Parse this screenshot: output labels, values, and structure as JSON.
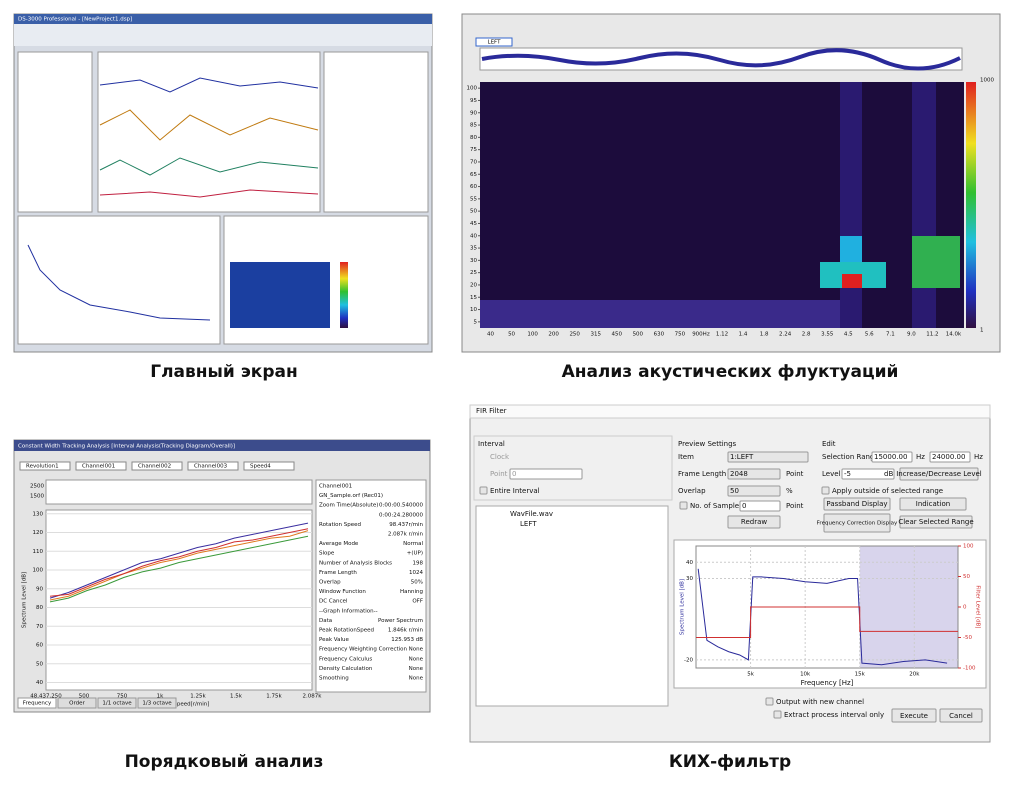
{
  "captions": [
    "Главный экран",
    "Анализ акустических флуктуаций",
    "Порядковый анализ",
    "КИХ-фильтр"
  ],
  "main_screen": {
    "title": "DS-3000 Professional - [NewProject1.dsp]"
  },
  "acoustic": {
    "xticks": [
      "40",
      "50",
      "100",
      "200",
      "250",
      "315",
      "450",
      "500",
      "630",
      "750",
      "900Hz",
      "1.12",
      "1.4",
      "1.8",
      "2.24",
      "2.8",
      "3.55",
      "4.5",
      "5.6",
      "7.1",
      "9.0",
      "11.2",
      "14.0k"
    ],
    "yticks": [
      100,
      95,
      90,
      85,
      80,
      75,
      70,
      65,
      60,
      55,
      50,
      45,
      40,
      35,
      30,
      25,
      20,
      15,
      10,
      5
    ],
    "colorbar": [
      1000,
      1
    ],
    "tab": "LEFT"
  },
  "order_analysis": {
    "title": "Constant Width Tracking Analysis [Interval Analysis(Tracking Diagram/Overall)]",
    "legend": [
      "Revolution1",
      "Channel001",
      "Channel002",
      "Channel003",
      "Speed4"
    ],
    "strip_yticks": [
      2500,
      1500
    ],
    "ylabel": "Spectrum Level [dB]",
    "xlabel": "Rotation Speed[r/min]",
    "ylim": [
      36,
      132
    ],
    "yticks": [
      130,
      120,
      110,
      100,
      90,
      80,
      70,
      60,
      50,
      40
    ],
    "xticks": [
      "48.437,250",
      "500",
      "750",
      "1k",
      "1.25k",
      "1.5k",
      "1.75k",
      "2.087k"
    ],
    "series": [
      {
        "name": "Channel001",
        "color": "#3a2ea0",
        "values": [
          85,
          88,
          92,
          96,
          100,
          104,
          106,
          109,
          112,
          114,
          117,
          119,
          121,
          123,
          125
        ]
      },
      {
        "name": "Channel002",
        "color": "#e07a20",
        "values": [
          84,
          86,
          90,
          94,
          98,
          101,
          104,
          106,
          109,
          111,
          113,
          115,
          117,
          118,
          121
        ]
      },
      {
        "name": "Channel003",
        "color": "#3a9a3a",
        "values": [
          83,
          85,
          89,
          92,
          96,
          99,
          101,
          104,
          106,
          108,
          110,
          112,
          114,
          116,
          118
        ]
      },
      {
        "name": "Revolution1",
        "color": "#d03030",
        "values": [
          86,
          87,
          91,
          95,
          98,
          102,
          105,
          107,
          110,
          112,
          115,
          116,
          118,
          120,
          122
        ]
      }
    ],
    "info": [
      [
        "Channel001",
        ""
      ],
      [
        "GN_Sample.orf (Rec01)",
        ""
      ],
      [
        "Zoom Time(Absolute)",
        "0:00:00.540000"
      ],
      [
        "",
        "0:00:24.280000"
      ],
      [
        "Rotation Speed",
        "98.437r/min"
      ],
      [
        "",
        "2.087k r/min"
      ],
      [
        "Average Mode",
        "Normal"
      ],
      [
        "Slope",
        "+(UP)"
      ],
      [
        "Number of Analysis Blocks",
        "198"
      ],
      [
        "Frame Length",
        "1024"
      ],
      [
        "Overlap",
        "50%"
      ],
      [
        "Window Function",
        "Hanning"
      ],
      [
        "DC Cancel",
        "OFF"
      ],
      [
        "--Graph Information--",
        ""
      ],
      [
        "Data",
        "Power Spectrum"
      ],
      [
        "Peak RotationSpeed",
        "1.846k r/min"
      ],
      [
        "Peak Value",
        "125.953 dB"
      ],
      [
        "Frequency Weighting Correction",
        "None"
      ],
      [
        "Frequency Calculus",
        "None"
      ],
      [
        "Density Calculation",
        "None"
      ],
      [
        "Smoothing",
        "None"
      ]
    ],
    "tabs": [
      "Frequency",
      "Order",
      "1/1 octave",
      "1/3 octave"
    ]
  },
  "fir": {
    "title": "FIR Filter",
    "interval": {
      "heading": "Interval",
      "clock": "Clock",
      "point": "Point",
      "point_value": "0",
      "entire": "Entire Interval"
    },
    "tree": [
      "WavFile.wav",
      "LEFT"
    ],
    "preview": {
      "heading": "Preview Settings",
      "item": "Item",
      "item_value": "1:LEFT",
      "frame": "Frame Length",
      "frame_value": "2048",
      "unit_point": "Point",
      "overlap": "Overlap",
      "overlap_value": "50",
      "percent": "%",
      "samples": "No. of Samples",
      "samples_value": "0",
      "redraw": "Redraw"
    },
    "edit": {
      "heading": "Edit",
      "range": "Selection Range",
      "from": "15000.00",
      "hz": "Hz",
      "to": "24000.00",
      "level": "Level",
      "level_value": "-5",
      "db": "dB",
      "incdec": "Increase/Decrease Level",
      "apply": "Apply outside of selected range",
      "passband": "Passband Display",
      "indication": "Indication",
      "correction": "Frequency Correction Display",
      "clear": "Clear Selected Range"
    },
    "chart": {
      "ylabel": "Spectrum Level [dB]",
      "y2label": "Filter Level [dB]",
      "xlabel": "Frequency [Hz]",
      "xlim": [
        0,
        24000
      ],
      "xticks": [
        {
          "value": 5000,
          "label": "5k"
        },
        {
          "value": 10000,
          "label": "10k"
        },
        {
          "value": 15000,
          "label": "15k"
        },
        {
          "value": 20000,
          "label": "20k"
        }
      ],
      "ylim": [
        -25,
        50
      ],
      "yticks": [
        40,
        30,
        -20
      ],
      "y2lim": [
        -100,
        100
      ],
      "y2ticks": [
        100,
        50,
        0,
        -50,
        -100
      ],
      "spectrum": {
        "x": [
          200,
          1000,
          2000,
          3000,
          4000,
          4800,
          5200,
          6000,
          8000,
          10000,
          12000,
          14000,
          14800,
          15200,
          17000,
          19000,
          21000,
          23000
        ],
        "values": [
          36,
          -8,
          -12,
          -15,
          -17,
          -20,
          31,
          31,
          30,
          28,
          27,
          30,
          30,
          -22,
          -23,
          -21,
          -20,
          -22
        ],
        "color": "#2a2a9a"
      },
      "filter": {
        "x": [
          0,
          5000,
          5000,
          15000,
          15000,
          24000
        ],
        "values": [
          -50,
          -50,
          0,
          0,
          -40,
          -40
        ],
        "color": "#d03030",
        "axis": "y2"
      }
    },
    "output": "Output with new channel",
    "extract": "Extract process interval only",
    "execute": "Execute",
    "cancel": "Cancel"
  }
}
